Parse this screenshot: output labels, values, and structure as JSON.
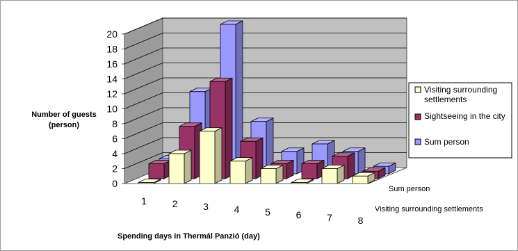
{
  "chart_data": {
    "type": "bar",
    "variant": "3d-clustered-depth",
    "title": "",
    "xlabel": "Spending days in Thermál Panzió (day)",
    "ylabel_lines": [
      "Number of guests",
      "(person)"
    ],
    "ylim": [
      0,
      20
    ],
    "y_ticks": [
      0,
      2,
      4,
      6,
      8,
      10,
      12,
      14,
      16,
      18,
      20
    ],
    "grid": true,
    "legend_position": "right",
    "categories": [
      "1",
      "2",
      "3",
      "4",
      "5",
      "6",
      "7",
      "8"
    ],
    "depth_labels": [
      "Sum person",
      "Visiting surrounding settlements"
    ],
    "series": [
      {
        "name": "Visiting surrounding settlements",
        "legend_lines": [
          "Visiting surrounding",
          "settlements"
        ],
        "color": "#ffffcc",
        "values": [
          0,
          4,
          7,
          3,
          2,
          0,
          2,
          1
        ]
      },
      {
        "name": "Sightseeing in the city",
        "legend_lines": [
          "Sightseeing in the city"
        ],
        "color": "#993366",
        "values": [
          2,
          7,
          13,
          5,
          2,
          2,
          3,
          1
        ]
      },
      {
        "name": "Sum person",
        "legend_lines": [
          "Sum person"
        ],
        "color": "#9999ff",
        "values": [
          2,
          11,
          20,
          7,
          3,
          4,
          3,
          1
        ]
      }
    ]
  }
}
